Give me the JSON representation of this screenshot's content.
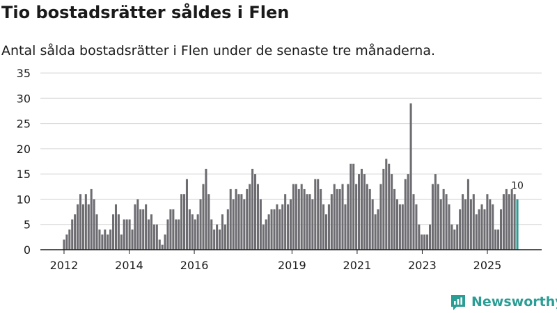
{
  "header": {
    "title": "Tio bostadsrätter såldes i Flen",
    "subtitle": "Antal sålda bostadsrätter i Flen under de senaste tre månaderna."
  },
  "brand": {
    "name": "Newsworthy",
    "color": "#2a9d94"
  },
  "chart_data": {
    "type": "bar",
    "title": "Tio bostadsrätter såldes i Flen",
    "subtitle": "Antal sålda bostadsrätter i Flen under de senaste tre månaderna.",
    "xlabel": "",
    "ylabel": "",
    "ylim": [
      0,
      35
    ],
    "yticks": [
      0,
      5,
      10,
      15,
      20,
      25,
      30,
      35
    ],
    "grid": true,
    "x_range": [
      2012,
      2025.92
    ],
    "xticks": [
      {
        "label": "2012",
        "value": 2012
      },
      {
        "label": "2014",
        "value": 2014
      },
      {
        "label": "2016",
        "value": 2016
      },
      {
        "label": "2019",
        "value": 2019
      },
      {
        "label": "2021",
        "value": 2021
      },
      {
        "label": "2023",
        "value": 2023
      },
      {
        "label": "2025",
        "value": 2025
      }
    ],
    "values": [
      2,
      3,
      4,
      6,
      7,
      9,
      11,
      9,
      11,
      9,
      12,
      10,
      7,
      4,
      3,
      4,
      3,
      4,
      7,
      9,
      7,
      3,
      6,
      6,
      6,
      4,
      9,
      10,
      8,
      8,
      9,
      6,
      7,
      5,
      5,
      2,
      1,
      3,
      6,
      8,
      8,
      6,
      6,
      11,
      11,
      14,
      8,
      7,
      6,
      7,
      10,
      13,
      16,
      11,
      6,
      4,
      5,
      4,
      7,
      5,
      8,
      12,
      10,
      12,
      11,
      11,
      10,
      12,
      13,
      16,
      15,
      13,
      10,
      5,
      6,
      7,
      8,
      8,
      9,
      8,
      9,
      11,
      9,
      10,
      13,
      13,
      12,
      13,
      12,
      11,
      11,
      10,
      14,
      14,
      12,
      9,
      7,
      9,
      11,
      13,
      12,
      12,
      13,
      9,
      13,
      17,
      17,
      13,
      15,
      16,
      15,
      13,
      12,
      10,
      7,
      8,
      13,
      16,
      18,
      17,
      15,
      12,
      10,
      9,
      9,
      14,
      15,
      29,
      11,
      9,
      5,
      3,
      3,
      3,
      5,
      13,
      15,
      13,
      10,
      12,
      11,
      9,
      5,
      4,
      5,
      8,
      11,
      10,
      14,
      10,
      11,
      7,
      8,
      9,
      8,
      11,
      10,
      9,
      4,
      4,
      8,
      11,
      12,
      11,
      12,
      11,
      10
    ],
    "bar_color": "#6d6c71",
    "highlight_color": "#2a9d94",
    "highlight_label": "10"
  }
}
